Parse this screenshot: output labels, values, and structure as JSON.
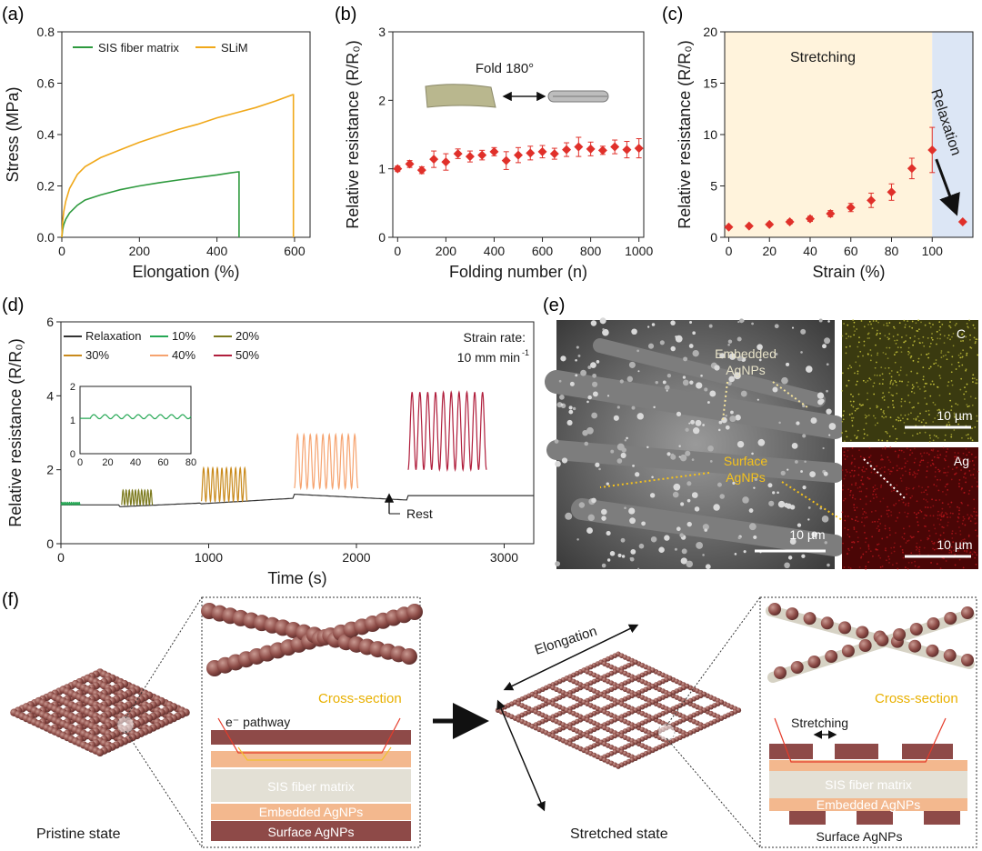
{
  "panels": {
    "a": {
      "label": "(a)"
    },
    "b": {
      "label": "(b)"
    },
    "c": {
      "label": "(c)"
    },
    "d": {
      "label": "(d)"
    },
    "e": {
      "label": "(e)"
    },
    "f": {
      "label": "(f)"
    }
  },
  "chart_data": [
    {
      "id": "a",
      "type": "line",
      "xlabel": "Elongation (%)",
      "ylabel": "Stress (MPa)",
      "xlim": [
        0,
        640
      ],
      "ylim": [
        0,
        0.8
      ],
      "xticks": [
        0,
        200,
        400,
        600
      ],
      "yticks": [
        0.0,
        0.2,
        0.4,
        0.6,
        0.8
      ],
      "ytick_labels": [
        "0.0",
        "0.2",
        "0.4",
        "0.6",
        "0.8"
      ],
      "legend_position": "top-left",
      "series": [
        {
          "name": "SIS fiber matrix",
          "color": "#2e9a3e",
          "x": [
            0,
            2,
            5,
            10,
            20,
            40,
            60,
            100,
            150,
            200,
            250,
            300,
            350,
            400,
            430,
            455,
            457,
            457
          ],
          "y": [
            0,
            0.03,
            0.05,
            0.07,
            0.095,
            0.125,
            0.145,
            0.165,
            0.185,
            0.2,
            0.212,
            0.223,
            0.233,
            0.243,
            0.25,
            0.255,
            0.255,
            0.0
          ]
        },
        {
          "name": "SLiM",
          "color": "#f0a81a",
          "x": [
            0,
            2,
            5,
            10,
            20,
            40,
            60,
            100,
            150,
            200,
            250,
            300,
            350,
            400,
            450,
            500,
            550,
            595,
            597,
            597
          ],
          "y": [
            0,
            0.06,
            0.1,
            0.14,
            0.19,
            0.245,
            0.275,
            0.31,
            0.34,
            0.37,
            0.395,
            0.42,
            0.44,
            0.465,
            0.485,
            0.505,
            0.53,
            0.555,
            0.555,
            0.0
          ]
        }
      ]
    },
    {
      "id": "b",
      "type": "scatter",
      "xlabel": "Folding number (n)",
      "ylabel": "Relative resistance (R/R₀)",
      "xlim": [
        -20,
        1020
      ],
      "ylim": [
        0,
        3
      ],
      "xticks": [
        0,
        200,
        400,
        600,
        800,
        1000
      ],
      "yticks": [
        0,
        1,
        2,
        3
      ],
      "annotation": "Fold 180°",
      "color": "#e0302a",
      "x": [
        0,
        50,
        100,
        150,
        200,
        250,
        300,
        350,
        400,
        450,
        500,
        550,
        600,
        650,
        700,
        750,
        800,
        850,
        900,
        950,
        1000
      ],
      "y": [
        1.0,
        1.07,
        0.98,
        1.14,
        1.1,
        1.22,
        1.18,
        1.2,
        1.25,
        1.12,
        1.2,
        1.23,
        1.25,
        1.22,
        1.28,
        1.32,
        1.29,
        1.27,
        1.32,
        1.28,
        1.3
      ],
      "err": [
        0.04,
        0.05,
        0.05,
        0.12,
        0.12,
        0.07,
        0.08,
        0.07,
        0.06,
        0.13,
        0.11,
        0.1,
        0.09,
        0.08,
        0.1,
        0.14,
        0.1,
        0.06,
        0.1,
        0.12,
        0.14
      ]
    },
    {
      "id": "c",
      "type": "scatter",
      "xlabel": "Strain (%)",
      "ylabel": "Relative resistance (R/R₀)",
      "xlim": [
        -2,
        120
      ],
      "ylim": [
        0,
        20
      ],
      "xticks": [
        0,
        20,
        40,
        60,
        80,
        100
      ],
      "yticks": [
        0,
        5,
        10,
        15,
        20
      ],
      "regions": [
        {
          "label": "Stretching",
          "color": "#fff3dc"
        },
        {
          "label": "Relaxation",
          "color": "#dce6f5"
        }
      ],
      "color": "#e0302a",
      "x": [
        0,
        10,
        20,
        30,
        40,
        50,
        60,
        70,
        80,
        90,
        100
      ],
      "y": [
        1.0,
        1.1,
        1.25,
        1.5,
        1.8,
        2.3,
        2.9,
        3.6,
        4.4,
        6.7,
        8.5
      ],
      "err": [
        0.1,
        0.1,
        0.15,
        0.2,
        0.25,
        0.3,
        0.4,
        0.7,
        0.8,
        1.0,
        2.2
      ],
      "relaxed_point": {
        "x": 115,
        "y": 1.5
      }
    },
    {
      "id": "d",
      "type": "line",
      "xlabel": "Time (s)",
      "ylabel": "Relative resistance (R/R₀)",
      "xlim": [
        0,
        3200
      ],
      "ylim": [
        0,
        6
      ],
      "xticks": [
        0,
        1000,
        2000,
        3000
      ],
      "yticks": [
        0,
        2,
        4,
        6
      ],
      "annotations": [
        "Strain rate:",
        "10 mm min",
        "-1",
        "Rest"
      ],
      "legend": [
        {
          "name": "Relaxation",
          "color": "#333333"
        },
        {
          "name": "10%",
          "color": "#26a855"
        },
        {
          "name": "20%",
          "color": "#7c7a1e"
        },
        {
          "name": "30%",
          "color": "#c98a1c"
        },
        {
          "name": "40%",
          "color": "#f6a36f"
        },
        {
          "name": "50%",
          "color": "#b01e3c"
        }
      ],
      "segments": [
        {
          "series": "10%",
          "start": 0,
          "end": 130,
          "base": 1.05,
          "peak": 1.12,
          "cycles": 10
        },
        {
          "series": "20%",
          "start": 410,
          "end": 620,
          "base": 1.05,
          "peak": 1.45,
          "cycles": 10
        },
        {
          "series": "30%",
          "start": 950,
          "end": 1260,
          "base": 1.15,
          "peak": 2.05,
          "cycles": 10
        },
        {
          "series": "40%",
          "start": 1580,
          "end": 2010,
          "base": 1.5,
          "peak": 2.95,
          "cycles": 10
        },
        {
          "series": "50%",
          "start": 2350,
          "end": 2880,
          "base": 2.0,
          "peak": 4.1,
          "cycles": 10
        }
      ],
      "inset": {
        "xlim": [
          0,
          80
        ],
        "ylim": [
          0,
          2
        ],
        "xticks": [
          0,
          20,
          40,
          60,
          80
        ],
        "yticks": [
          0,
          1,
          2
        ],
        "base": 1.1,
        "amp": 0.06
      }
    }
  ],
  "panel_e": {
    "sem_labels": [
      "Embedded",
      "AgNPs",
      "Surface",
      "AgNPs"
    ],
    "scale_bar": "10 µm",
    "maps": [
      {
        "element": "C",
        "scale": "10 µm",
        "color": "#c7c43c"
      },
      {
        "element": "Ag",
        "scale": "10 µm",
        "color": "#b3151a"
      }
    ]
  },
  "panel_f": {
    "pristine_label": "Pristine state",
    "stretched_label": "Stretched state",
    "elongation_label": "Elongation",
    "cross_section": "Cross-section",
    "pathway": "e⁻ pathway",
    "stretching": "Stretching",
    "layers": {
      "matrix": "SIS fiber matrix",
      "embedded": "Embedded AgNPs",
      "surface": "Surface AgNPs"
    },
    "colors": {
      "fiber": "#8a4d48",
      "matrix": "#e3e0d5",
      "embedded": "#f3b88e",
      "surface": "#8e4a48"
    }
  }
}
